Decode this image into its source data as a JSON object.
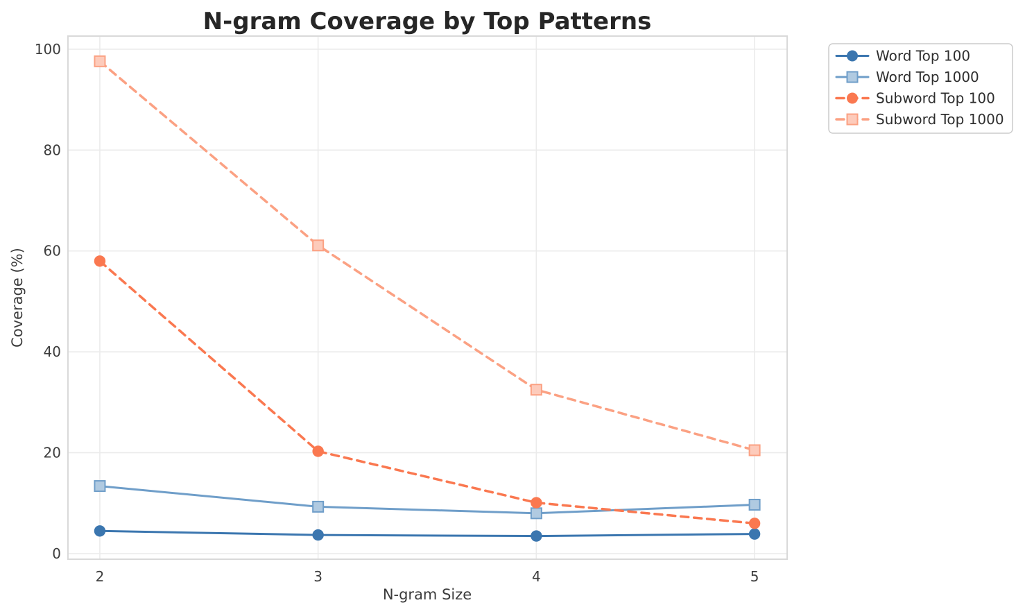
{
  "chart_data": {
    "type": "line",
    "title": "N-gram Coverage by Top Patterns",
    "xlabel": "N-gram Size",
    "ylabel": "Coverage (%)",
    "x": [
      2,
      3,
      4,
      5
    ],
    "xticks": [
      "2",
      "3",
      "4",
      "5"
    ],
    "yticks": [
      "0",
      "20",
      "40",
      "60",
      "80",
      "100"
    ],
    "ytick_values": [
      0,
      20,
      40,
      60,
      80,
      100
    ],
    "xlim": [
      1.854,
      5.149
    ],
    "ylim": [
      -1.1,
      102.6
    ],
    "grid": true,
    "legend_position": "outside-top-right",
    "series": [
      {
        "name": "Word Top 100",
        "color": "#3b76af",
        "marker": "circle",
        "dash": "solid",
        "values": [
          4.5,
          3.7,
          3.5,
          3.9
        ]
      },
      {
        "name": "Word Top 1000",
        "color": "#6f9ec9",
        "marker": "square",
        "dash": "solid",
        "values": [
          13.4,
          9.3,
          8.0,
          9.7
        ]
      },
      {
        "name": "Subword Top 100",
        "color": "#fa7850",
        "marker": "circle",
        "dash": "dashed",
        "values": [
          58.0,
          20.3,
          10.1,
          6.0
        ]
      },
      {
        "name": "Subword Top 1000",
        "color": "#fba183",
        "marker": "square",
        "dash": "dashed",
        "values": [
          97.6,
          61.1,
          32.5,
          20.5
        ]
      }
    ],
    "style": {
      "grid_color": "#ebebeb",
      "spine_color": "#d9d9d9",
      "background": "#ffffff",
      "legend_border": "#cccccc"
    }
  }
}
